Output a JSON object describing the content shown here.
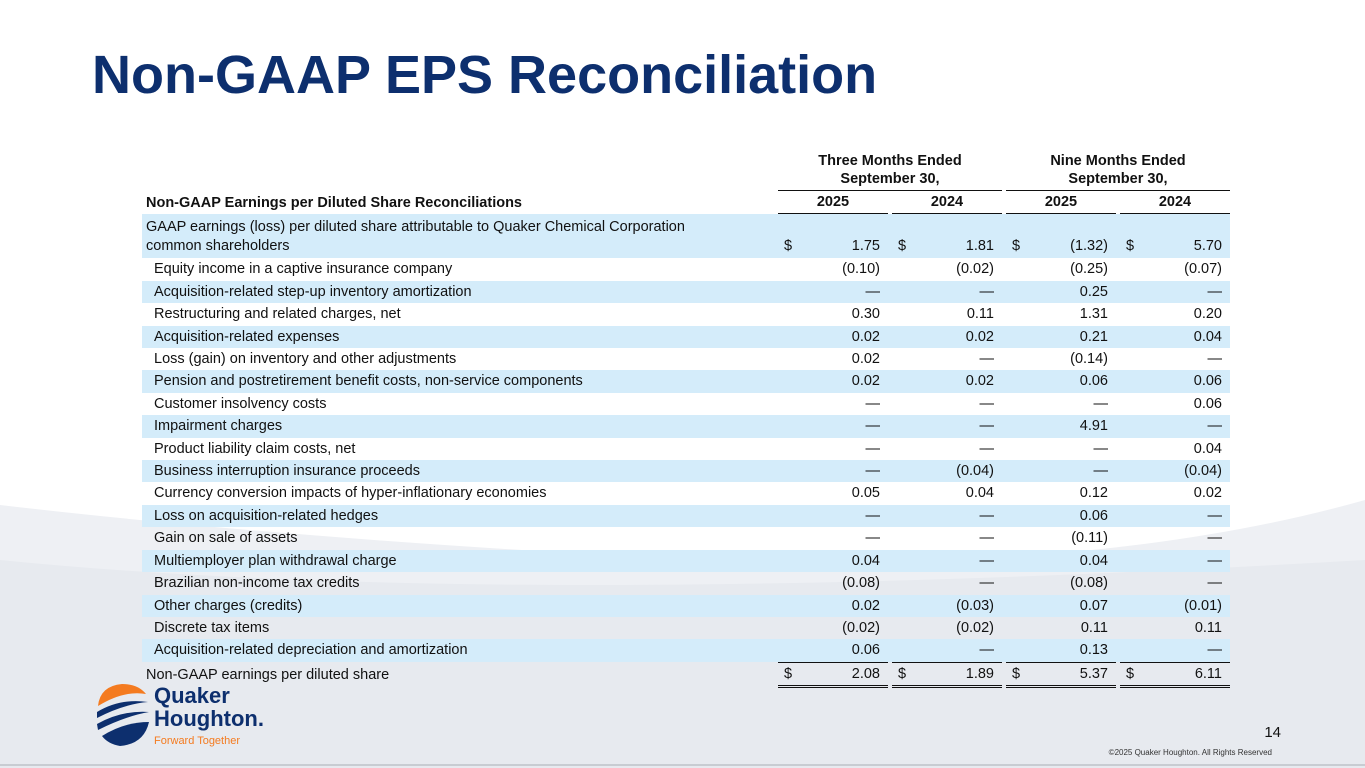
{
  "title": "Non-GAAP EPS Reconciliation",
  "table": {
    "header_label": "Non-GAAP Earnings per Diluted Share Reconciliations",
    "groups": [
      "Three Months Ended September 30,",
      "Nine Months Ended September 30,"
    ],
    "group_lines": [
      [
        "Three Months Ended",
        "September 30,"
      ],
      [
        "Nine Months Ended",
        "September 30,"
      ]
    ],
    "years": [
      "2025",
      "2024",
      "2025",
      "2024"
    ],
    "first_row": {
      "label_lines": [
        "GAAP earnings (loss) per diluted share attributable to Quaker Chemical Corporation",
        "common shareholders"
      ],
      "currency": "$",
      "values": [
        "1.75",
        "1.81",
        "(1.32)",
        "5.70"
      ]
    },
    "rows": [
      {
        "label": "Equity income in a captive insurance company",
        "values": [
          "(0.10)",
          "(0.02)",
          "(0.25)",
          "(0.07)"
        ]
      },
      {
        "label": "Acquisition-related step-up inventory amortization",
        "values": [
          "—",
          "—",
          "0.25",
          "—"
        ]
      },
      {
        "label": "Restructuring and related charges, net",
        "values": [
          "0.30",
          "0.11",
          "1.31",
          "0.20"
        ]
      },
      {
        "label": "Acquisition-related expenses",
        "values": [
          "0.02",
          "0.02",
          "0.21",
          "0.04"
        ]
      },
      {
        "label": "Loss (gain) on inventory and other adjustments",
        "values": [
          "0.02",
          "—",
          "(0.14)",
          "—"
        ]
      },
      {
        "label": "Pension and postretirement benefit costs, non-service components",
        "values": [
          "0.02",
          "0.02",
          "0.06",
          "0.06"
        ]
      },
      {
        "label": "Customer insolvency costs",
        "values": [
          "—",
          "—",
          "—",
          "0.06"
        ]
      },
      {
        "label": "Impairment charges",
        "values": [
          "—",
          "—",
          "4.91",
          "—"
        ]
      },
      {
        "label": "Product liability claim costs, net",
        "values": [
          "—",
          "—",
          "—",
          "0.04"
        ]
      },
      {
        "label": "Business interruption insurance proceeds",
        "values": [
          "—",
          "(0.04)",
          "—",
          "(0.04)"
        ]
      },
      {
        "label": "Currency conversion impacts of hyper-inflationary economies",
        "values": [
          "0.05",
          "0.04",
          "0.12",
          "0.02"
        ]
      },
      {
        "label": "Loss on acquisition-related hedges",
        "values": [
          "—",
          "—",
          "0.06",
          "—"
        ]
      },
      {
        "label": "Gain on sale of assets",
        "values": [
          "—",
          "—",
          "(0.11)",
          "—"
        ]
      },
      {
        "label": "Multiemployer plan withdrawal charge",
        "values": [
          "0.04",
          "—",
          "0.04",
          "—"
        ]
      },
      {
        "label": "Brazilian non-income tax credits",
        "values": [
          "(0.08)",
          "—",
          "(0.08)",
          "—"
        ]
      },
      {
        "label": "Other charges (credits)",
        "values": [
          "0.02",
          "(0.03)",
          "0.07",
          "(0.01)"
        ]
      },
      {
        "label": "Discrete tax items",
        "values": [
          "(0.02)",
          "(0.02)",
          "0.11",
          "0.11"
        ]
      },
      {
        "label": "Acquisition-related depreciation and amortization",
        "values": [
          "0.06",
          "—",
          "0.13",
          "—"
        ]
      }
    ],
    "total_row": {
      "label": "Non-GAAP earnings per diluted share",
      "currency": "$",
      "values": [
        "2.08",
        "1.89",
        "5.37",
        "6.11"
      ]
    }
  },
  "footer": {
    "logo_text": [
      "Quaker",
      "Houghton.",
      "Forward Together"
    ],
    "page_number": "14",
    "copyright": "©2025 Quaker Houghton. All Rights Reserved"
  },
  "colors": {
    "title": "#0d2f6e",
    "row_shade": "#d4ecfa",
    "logo_orange": "#f47b20",
    "logo_navy": "#0d2f6e"
  }
}
